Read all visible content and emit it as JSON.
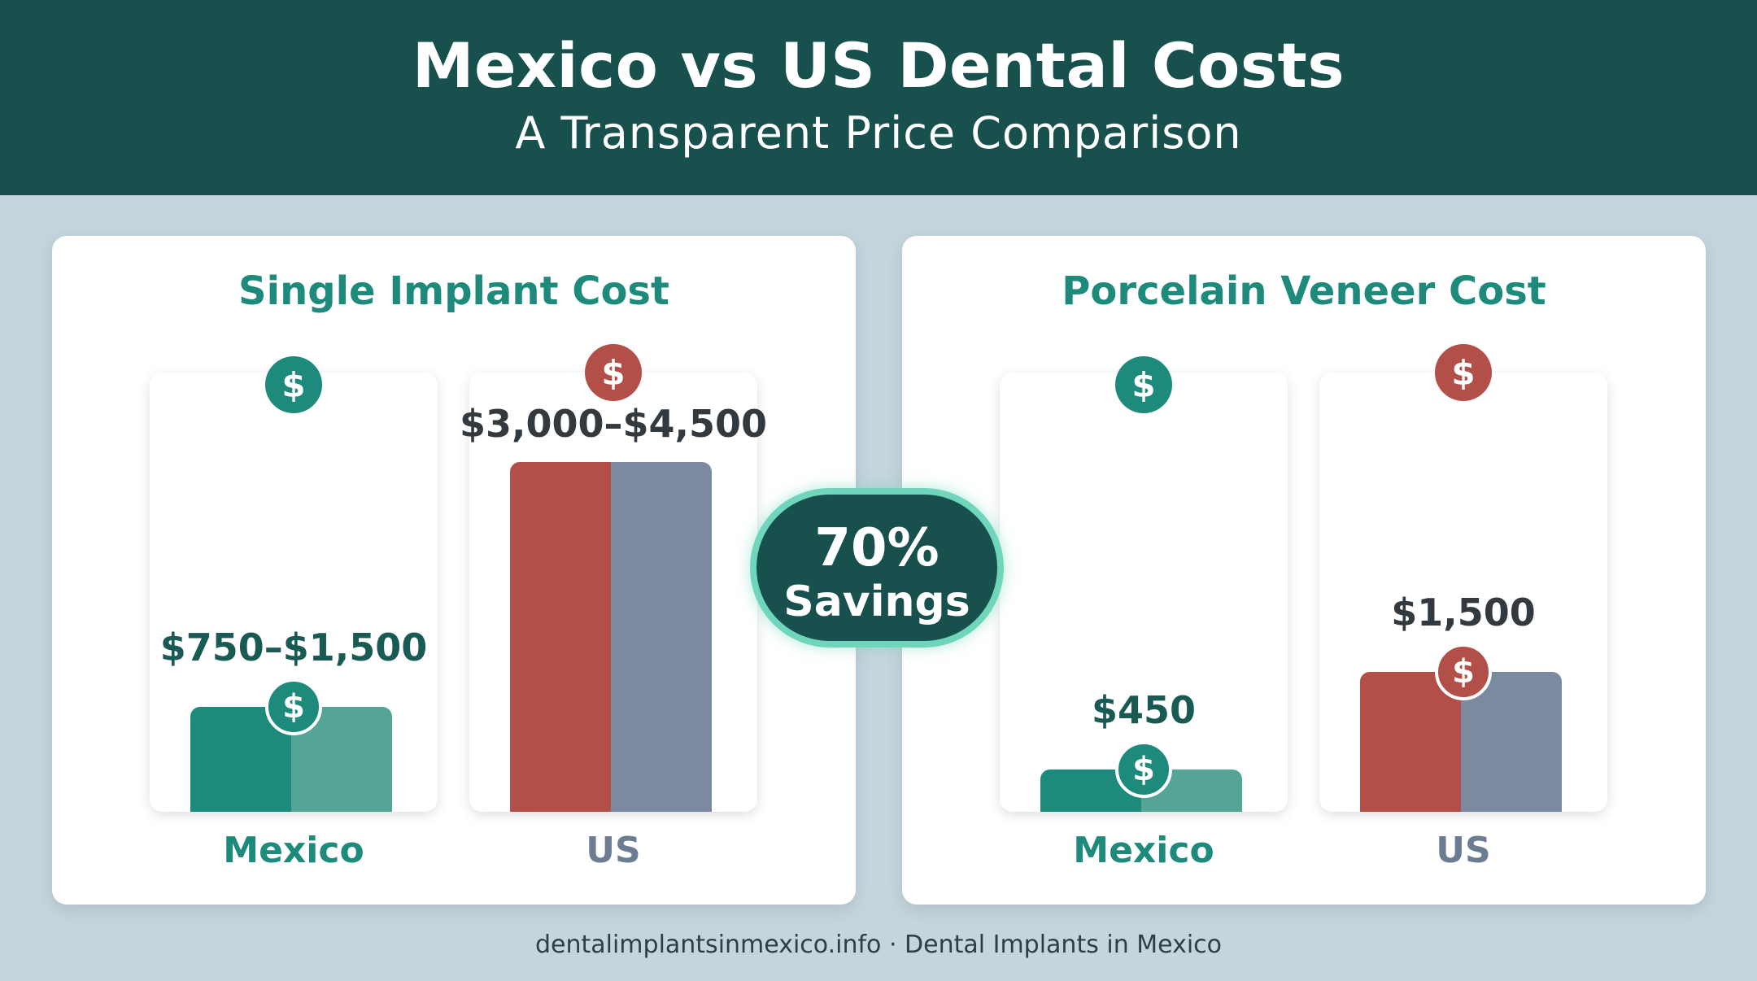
{
  "header": {
    "title": "Mexico vs US Dental Costs",
    "subtitle": "A Transparent Price Comparison"
  },
  "badge": {
    "percent": "70%",
    "label": "Savings"
  },
  "footer": {
    "text": "dentalimplantsinmexico.info · Dental Implants in Mexico"
  },
  "icon_symbol": "$",
  "colors": {
    "header_bg": "#17504d",
    "mexico_dark": "#1d8a7c",
    "mexico_light": "#55a596",
    "us_red": "#b24f48",
    "us_slate": "#7b8a9f",
    "badge_border": "#6fd6bb"
  },
  "chart_data": [
    {
      "type": "bar",
      "title": "Single Implant Cost",
      "categories": [
        "Mexico",
        "US"
      ],
      "value_labels": [
        "$750–$1,500",
        "$3,000–$4,500"
      ],
      "values": [
        1125,
        3750
      ],
      "ranges": [
        [
          750,
          1500
        ],
        [
          3000,
          4500
        ]
      ],
      "category_colors": [
        [
          "#1d8a7c",
          "#55a596"
        ],
        [
          "#b24f48",
          "#7b8a9f"
        ]
      ],
      "icon_colors": [
        "#1d8a7c",
        "#b24f48"
      ]
    },
    {
      "type": "bar",
      "title": "Porcelain Veneer Cost",
      "categories": [
        "Mexico",
        "US"
      ],
      "value_labels": [
        "$450",
        "$1,500"
      ],
      "values": [
        450,
        1500
      ],
      "category_colors": [
        [
          "#1d8a7c",
          "#55a596"
        ],
        [
          "#b24f48",
          "#7b8a9f"
        ]
      ],
      "icon_colors": [
        "#1d8a7c",
        "#b24f48"
      ]
    }
  ]
}
